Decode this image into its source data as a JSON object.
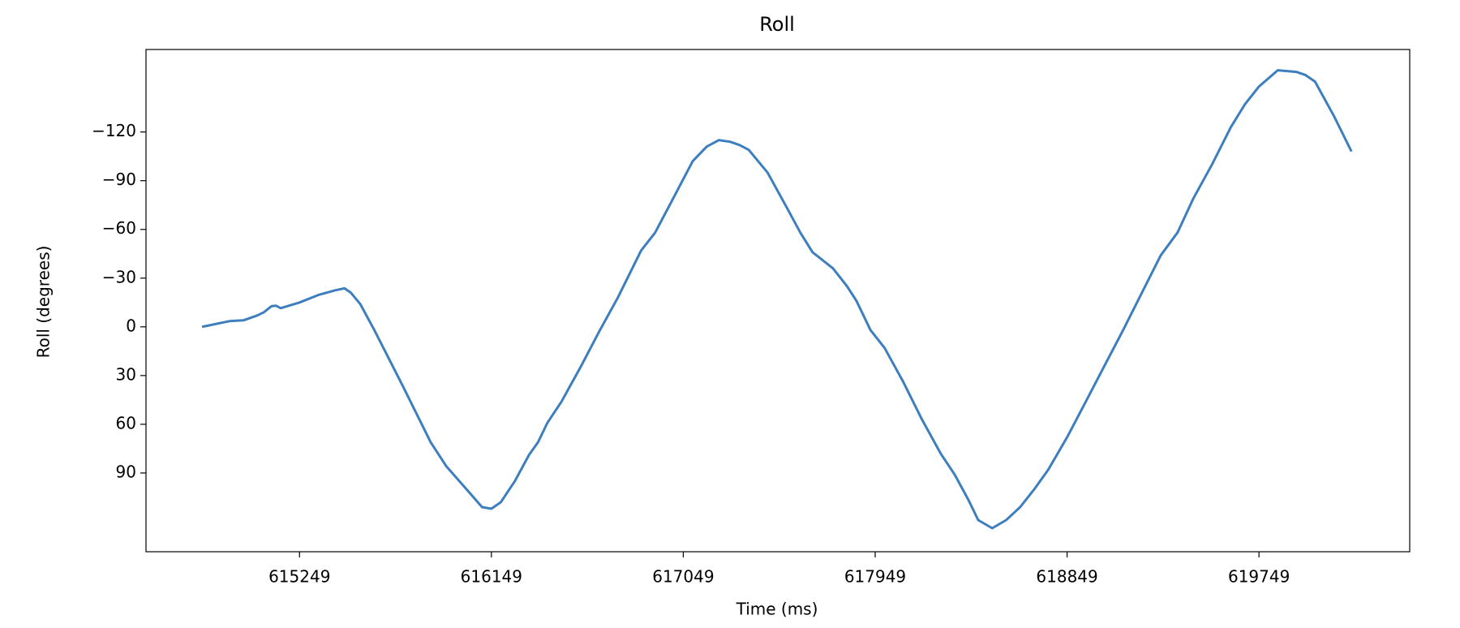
{
  "chart_data": {
    "type": "line",
    "title": "Roll",
    "x_label": "Time (ms)",
    "y_label": "Roll (degrees)",
    "color": "#3d7ebf",
    "x": [
      614792,
      614920,
      614986,
      615051,
      615082,
      615117,
      615139,
      615161,
      615249,
      615337,
      615416,
      615460,
      615490,
      615534,
      615600,
      615732,
      615864,
      615938,
      616039,
      616105,
      616149,
      616193,
      616259,
      616325,
      616368,
      616412,
      616478,
      616566,
      616654,
      616742,
      616851,
      616917,
      617005,
      617093,
      617159,
      617216,
      617268,
      617312,
      617356,
      617444,
      617532,
      617598,
      617655,
      617751,
      617817,
      617861,
      617927,
      617993,
      618081,
      618168,
      618256,
      618322,
      618388,
      618432,
      618498,
      618563,
      618629,
      618695,
      618761,
      618849,
      618937,
      619024,
      619112,
      619200,
      619288,
      619367,
      619441,
      619529,
      619617,
      619683,
      619749,
      619837,
      619924,
      619968,
      620012,
      620100,
      620183
    ],
    "values": [
      0,
      -3.5,
      -4,
      -7,
      -9,
      -12.7,
      -13,
      -11.5,
      -15,
      -19.6,
      -22.5,
      -23.7,
      -21,
      -14,
      2,
      36,
      71,
      86,
      101,
      111,
      112,
      108,
      95,
      79,
      71,
      59,
      46,
      25,
      3,
      -18,
      -47,
      -58,
      -80,
      -102,
      -111,
      -115,
      -114,
      -112,
      -109,
      -95,
      -74,
      -58,
      -46,
      -36,
      -25,
      -16,
      2,
      13,
      34,
      57,
      78,
      91,
      107,
      119,
      124,
      119,
      111,
      100,
      88,
      68,
      46,
      24,
      2,
      -21,
      -44,
      -58,
      -79,
      -100,
      -123,
      -137,
      -148,
      -158,
      -157,
      -155,
      -151,
      -130,
      -108
    ],
    "xlim": [
      614529,
      620456
    ],
    "ylim": [
      138.5,
      -170.8
    ],
    "xticks": [
      615249,
      616149,
      617049,
      617949,
      618849,
      619749
    ],
    "yticks": [
      {
        "value": -120,
        "label": "−120"
      },
      {
        "value": -90,
        "label": "−90"
      },
      {
        "value": -60,
        "label": "−60"
      },
      {
        "value": -30,
        "label": "−30"
      },
      0,
      30,
      60,
      90
    ]
  }
}
